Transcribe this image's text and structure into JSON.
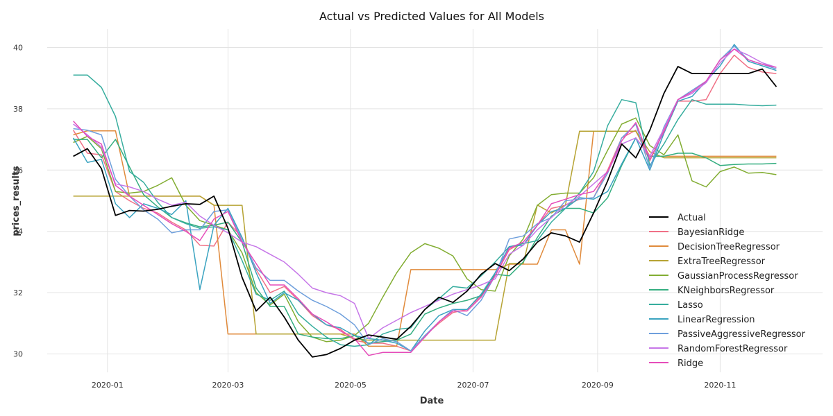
{
  "chart_data": {
    "type": "line",
    "title": "Actual vs Predicted Values for All Models",
    "xlabel": "Date",
    "ylabel": "prices_results",
    "x_type": "date",
    "xlim": [
      "2019-12-02",
      "2020-12-22"
    ],
    "ylim": [
      29.4,
      40.6
    ],
    "x_ticks": [
      {
        "value": "2020-01-01",
        "label": "2020-01"
      },
      {
        "value": "2020-03-01",
        "label": "2020-03"
      },
      {
        "value": "2020-05-01",
        "label": "2020-05"
      },
      {
        "value": "2020-07-01",
        "label": "2020-07"
      },
      {
        "value": "2020-09-01",
        "label": "2020-09"
      },
      {
        "value": "2020-11-01",
        "label": "2020-11"
      }
    ],
    "y_ticks": [
      30,
      32,
      34,
      36,
      38,
      40
    ],
    "grid": true,
    "legend_position": "center-right",
    "x": [
      "2019-12-15",
      "2019-12-22",
      "2019-12-29",
      "2020-01-05",
      "2020-01-12",
      "2020-01-19",
      "2020-01-26",
      "2020-02-02",
      "2020-02-09",
      "2020-02-16",
      "2020-02-23",
      "2020-03-01",
      "2020-03-08",
      "2020-03-15",
      "2020-03-22",
      "2020-03-29",
      "2020-04-05",
      "2020-04-12",
      "2020-04-19",
      "2020-04-26",
      "2020-05-03",
      "2020-05-10",
      "2020-05-17",
      "2020-05-24",
      "2020-05-31",
      "2020-06-07",
      "2020-06-14",
      "2020-06-21",
      "2020-06-28",
      "2020-07-05",
      "2020-07-12",
      "2020-07-19",
      "2020-07-26",
      "2020-08-02",
      "2020-08-09",
      "2020-08-16",
      "2020-08-23",
      "2020-08-30",
      "2020-09-06",
      "2020-09-13",
      "2020-09-20",
      "2020-09-27",
      "2020-10-04",
      "2020-10-11",
      "2020-10-18",
      "2020-10-25",
      "2020-11-01",
      "2020-11-08",
      "2020-11-15",
      "2020-11-22",
      "2020-11-29"
    ],
    "series": [
      {
        "name": "Actual",
        "color": "#000000",
        "values": [
          36.45,
          36.7,
          36.05,
          34.52,
          34.68,
          34.66,
          34.72,
          34.82,
          34.9,
          34.88,
          35.15,
          34.1,
          32.5,
          31.4,
          31.85,
          31.2,
          30.45,
          29.9,
          29.98,
          30.18,
          30.45,
          30.62,
          30.55,
          30.48,
          30.9,
          31.45,
          31.85,
          31.68,
          32.05,
          32.6,
          32.95,
          32.72,
          33.1,
          33.65,
          33.95,
          33.85,
          33.65,
          34.6,
          35.65,
          36.85,
          36.4,
          37.3,
          38.5,
          39.38,
          39.15,
          39.15,
          39.15,
          39.15,
          39.15,
          39.3,
          38.72
        ]
      },
      {
        "name": "BayesianRidge",
        "color": "#f07086",
        "values": [
          37.3,
          36.55,
          36.5,
          35.3,
          35.0,
          34.75,
          34.6,
          34.3,
          34.05,
          33.55,
          33.52,
          34.3,
          33.8,
          32.75,
          32.0,
          32.2,
          31.75,
          31.25,
          30.95,
          30.8,
          30.45,
          30.35,
          30.35,
          30.25,
          30.1,
          30.6,
          31.0,
          31.35,
          31.45,
          31.9,
          32.55,
          33.4,
          33.65,
          34.2,
          34.75,
          34.85,
          35.05,
          35.1,
          36.0,
          37.05,
          37.3,
          36.3,
          37.3,
          38.25,
          38.25,
          38.3,
          39.15,
          39.75,
          39.35,
          39.2,
          39.15
        ]
      },
      {
        "name": "DecisionTreeRegressor",
        "color": "#e08a3b",
        "values": [
          37.15,
          37.28,
          37.28,
          37.28,
          35.15,
          35.15,
          35.15,
          35.15,
          35.15,
          35.15,
          34.86,
          30.65,
          30.65,
          30.65,
          30.65,
          30.65,
          30.65,
          30.65,
          30.65,
          30.65,
          30.65,
          30.25,
          30.25,
          30.25,
          32.75,
          32.75,
          32.75,
          32.75,
          32.75,
          32.75,
          32.75,
          32.93,
          32.93,
          32.93,
          34.05,
          34.05,
          32.93,
          37.27,
          37.27,
          37.27,
          37.27,
          36.45,
          36.45,
          36.45,
          36.45,
          36.45,
          36.45,
          36.45,
          36.45,
          36.45,
          36.45
        ]
      },
      {
        "name": "ExtraTreeRegressor",
        "color": "#b6a333",
        "values": [
          35.15,
          35.15,
          35.15,
          35.15,
          35.15,
          35.15,
          35.15,
          35.15,
          35.15,
          35.15,
          34.85,
          34.85,
          34.85,
          30.65,
          30.65,
          30.65,
          30.65,
          30.65,
          30.65,
          30.65,
          30.5,
          30.45,
          30.45,
          30.45,
          30.45,
          30.45,
          30.45,
          30.45,
          30.45,
          30.45,
          30.45,
          32.95,
          32.95,
          34.86,
          34.6,
          34.86,
          37.27,
          37.27,
          37.27,
          37.27,
          37.27,
          36.6,
          36.4,
          36.4,
          36.4,
          36.4,
          36.4,
          36.4,
          36.4,
          36.4,
          36.4
        ]
      },
      {
        "name": "GaussianProcessRegressor",
        "color": "#82ad32",
        "values": [
          36.9,
          37.1,
          36.7,
          35.3,
          35.25,
          35.3,
          35.5,
          35.75,
          34.85,
          34.35,
          34.2,
          34.05,
          33.3,
          32.0,
          31.6,
          31.95,
          31.05,
          30.55,
          30.4,
          30.45,
          30.6,
          31.0,
          31.85,
          32.65,
          33.3,
          33.6,
          33.45,
          33.2,
          32.45,
          32.1,
          32.05,
          33.2,
          33.75,
          34.85,
          35.2,
          35.25,
          35.25,
          35.75,
          36.65,
          37.5,
          37.7,
          36.8,
          36.5,
          37.15,
          35.65,
          35.45,
          35.95,
          36.1,
          35.9,
          35.92,
          35.85
        ]
      },
      {
        "name": "KNeighborsRegressor",
        "color": "#34ae80",
        "values": [
          37.0,
          37.0,
          36.4,
          37.0,
          36.1,
          35.2,
          34.8,
          34.45,
          34.28,
          34.15,
          34.2,
          34.3,
          33.65,
          32.15,
          31.55,
          31.55,
          30.65,
          30.55,
          30.5,
          30.5,
          30.6,
          30.35,
          30.4,
          30.45,
          30.65,
          31.3,
          31.5,
          31.65,
          31.75,
          31.9,
          32.6,
          32.55,
          33.0,
          33.8,
          34.5,
          34.75,
          34.75,
          34.6,
          35.1,
          36.15,
          37.05,
          36.45,
          36.45,
          36.55,
          36.55,
          36.4,
          36.15,
          36.18,
          36.2,
          36.2,
          36.22
        ]
      },
      {
        "name": "Lasso",
        "color": "#36ad9e",
        "values": [
          39.1,
          39.1,
          38.7,
          37.75,
          35.95,
          35.6,
          34.95,
          34.45,
          34.25,
          34.1,
          34.15,
          34.05,
          33.05,
          31.95,
          31.75,
          32.05,
          31.3,
          30.9,
          30.55,
          30.3,
          30.25,
          30.3,
          30.65,
          30.8,
          30.85,
          31.45,
          31.8,
          32.2,
          32.15,
          32.55,
          33.0,
          33.5,
          33.6,
          33.7,
          34.3,
          34.75,
          35.25,
          35.95,
          37.45,
          38.3,
          38.2,
          36.15,
          36.85,
          37.65,
          38.3,
          38.15,
          38.15,
          38.15,
          38.12,
          38.1,
          38.12
        ]
      },
      {
        "name": "LinearRegression",
        "color": "#3aa3c0",
        "values": [
          37.05,
          36.25,
          36.35,
          34.9,
          34.45,
          34.9,
          34.75,
          34.55,
          35.0,
          32.1,
          34.2,
          34.75,
          33.8,
          32.65,
          31.65,
          32.0,
          31.75,
          31.3,
          30.95,
          30.85,
          30.6,
          30.5,
          30.45,
          30.35,
          30.1,
          30.75,
          31.25,
          31.45,
          31.45,
          31.95,
          32.65,
          33.5,
          33.55,
          34.2,
          34.65,
          34.75,
          35.1,
          35.05,
          35.3,
          36.2,
          37.05,
          36.0,
          37.2,
          38.25,
          38.4,
          38.9,
          39.4,
          40.1,
          39.55,
          39.4,
          39.25
        ]
      },
      {
        "name": "PassiveAggressiveRegressor",
        "color": "#6e9fdc",
        "values": [
          37.35,
          37.3,
          37.15,
          35.7,
          35.15,
          34.7,
          34.4,
          33.95,
          34.05,
          34.05,
          34.65,
          34.7,
          33.7,
          32.8,
          32.4,
          32.4,
          32.05,
          31.75,
          31.55,
          31.3,
          30.95,
          30.3,
          30.5,
          30.4,
          30.1,
          30.6,
          31.05,
          31.45,
          31.25,
          31.75,
          32.55,
          33.75,
          33.85,
          34.25,
          34.45,
          35.0,
          35.05,
          35.1,
          35.9,
          37.05,
          37.5,
          36.05,
          37.4,
          38.3,
          38.6,
          38.9,
          39.6,
          40.05,
          39.6,
          39.45,
          39.3
        ]
      },
      {
        "name": "RandomForestRegressor",
        "color": "#c676e8",
        "values": [
          37.5,
          37.15,
          36.75,
          35.55,
          35.45,
          35.3,
          35.05,
          34.85,
          34.95,
          34.5,
          34.2,
          33.95,
          33.65,
          33.5,
          33.25,
          33.0,
          32.6,
          32.15,
          32.0,
          31.9,
          31.65,
          30.5,
          30.85,
          31.1,
          31.35,
          31.55,
          31.75,
          31.95,
          32.1,
          32.25,
          32.45,
          33.25,
          33.55,
          34.05,
          34.45,
          34.85,
          35.15,
          35.55,
          35.95,
          36.85,
          37.05,
          36.45,
          37.35,
          38.3,
          38.5,
          38.85,
          39.5,
          39.95,
          39.75,
          39.5,
          39.35
        ]
      },
      {
        "name": "Ridge",
        "color": "#e64cba",
        "values": [
          37.6,
          37.1,
          36.85,
          35.5,
          35.15,
          34.85,
          34.55,
          34.25,
          34.0,
          33.7,
          34.4,
          34.65,
          33.65,
          32.95,
          32.25,
          32.25,
          31.8,
          31.3,
          31.05,
          30.75,
          30.5,
          29.95,
          30.05,
          30.05,
          30.05,
          30.55,
          31.05,
          31.4,
          31.4,
          31.85,
          32.55,
          33.45,
          33.65,
          34.2,
          34.9,
          35.05,
          35.2,
          35.3,
          35.95,
          36.95,
          37.55,
          36.35,
          37.25,
          38.3,
          38.55,
          38.9,
          39.6,
          39.95,
          39.6,
          39.45,
          39.35
        ]
      }
    ]
  }
}
